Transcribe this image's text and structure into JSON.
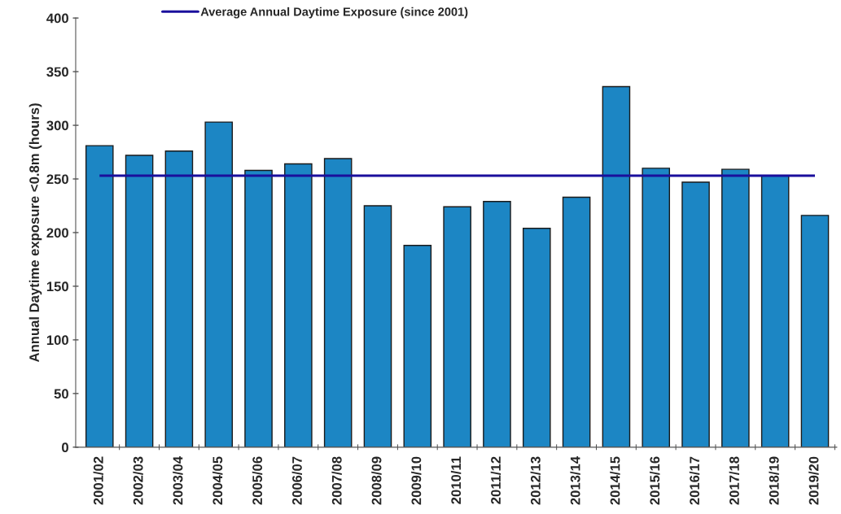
{
  "chart_data": {
    "type": "bar",
    "ylabel": "Annual Daytime exposure <0.8m (hours)",
    "categories": [
      "2001/02",
      "2002/03",
      "2003/04",
      "2004/05",
      "2005/06",
      "2006/07",
      "2007/08",
      "2008/09",
      "2009/10",
      "2010/11",
      "2011/12",
      "2012/13",
      "2013/14",
      "2014/15",
      "2015/16",
      "2016/17",
      "2017/18",
      "2018/19",
      "2019/20"
    ],
    "values": [
      281,
      272,
      276,
      303,
      258,
      264,
      269,
      225,
      188,
      224,
      229,
      204,
      233,
      336,
      260,
      247,
      259,
      253,
      216
    ],
    "color": "#1c86c4",
    "ylim": [
      0,
      400
    ],
    "yticks": [
      0,
      50,
      100,
      150,
      200,
      250,
      300,
      350,
      400
    ],
    "ref_lines": [
      {
        "axis": "y",
        "value": 253,
        "label": "Average Annual Daytime Exposure (since 2001)",
        "color": "#1a0f9c",
        "line_style": "solid"
      }
    ],
    "grid": false,
    "legend": "top"
  }
}
